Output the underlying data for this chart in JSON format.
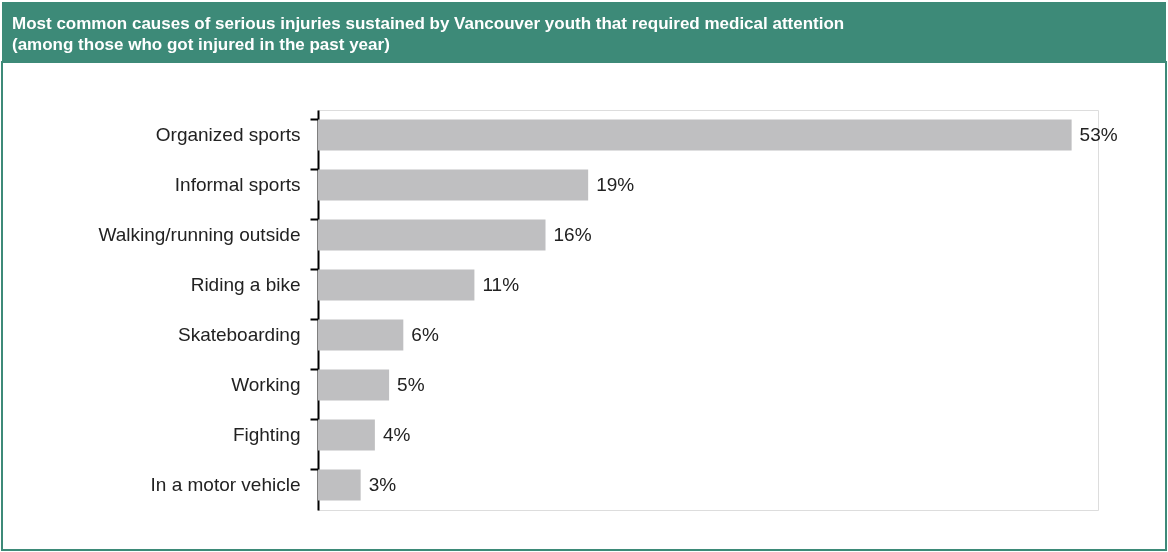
{
  "chart_data": {
    "type": "bar",
    "orientation": "horizontal",
    "title": "Most common causes of serious injuries sustained by Vancouver youth that required medical attention",
    "subtitle": "(among those who got injured in the past year)",
    "categories": [
      "Organized sports",
      "Informal sports",
      "Walking/running outside",
      "Riding a bike",
      "Skateboarding",
      "Working",
      "Fighting",
      "In a motor vehicle"
    ],
    "values": [
      53,
      19,
      16,
      11,
      6,
      5,
      4,
      3
    ],
    "value_labels": [
      "53%",
      "19%",
      "16%",
      "11%",
      "6%",
      "5%",
      "4%",
      "3%"
    ],
    "color": "#bfbfc1"
  }
}
